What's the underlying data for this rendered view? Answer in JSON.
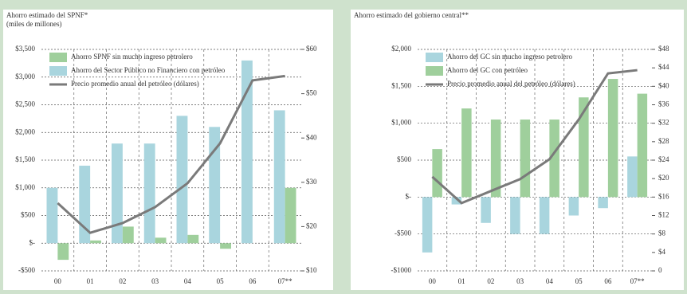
{
  "chart_data": [
    {
      "type": "bar",
      "title": "Ahorro estimado del SPNF*",
      "subtitle": "(miles de millones)",
      "categories": [
        "00",
        "01",
        "02",
        "03",
        "04",
        "05",
        "06",
        "07**"
      ],
      "series": [
        {
          "name": "Ahorro del Sector Público no Financiero con petróleo",
          "color": "#a9d5de",
          "values": [
            1000,
            1400,
            1800,
            1800,
            2300,
            2100,
            3300,
            2400
          ]
        },
        {
          "name": "Ahorro SPNF sin mucho ingreso petrolero",
          "color": "#9fcf9c",
          "values": [
            -300,
            50,
            300,
            100,
            150,
            -100,
            0,
            1000
          ]
        },
        {
          "name": "Precio promedio anual del petróleo (dólares)",
          "type": "line",
          "axis": "y2",
          "color": "#7a7a7a",
          "values": [
            25.3,
            18.6,
            20.8,
            24.4,
            29.8,
            38.8,
            53,
            54
          ]
        }
      ],
      "ylim": [
        -500,
        3500
      ],
      "yticks": [
        {
          "value": -500,
          "label": "-$500"
        },
        {
          "value": 0,
          "label": "$-"
        },
        {
          "value": 500,
          "label": "$500"
        },
        {
          "value": 1000,
          "label": "$1,000"
        },
        {
          "value": 1500,
          "label": "$1,500"
        },
        {
          "value": 2000,
          "label": "$2,000"
        },
        {
          "value": 2500,
          "label": "$2,500"
        },
        {
          "value": 3000,
          "label": "$3,000"
        },
        {
          "value": 3500,
          "label": "$3,500"
        }
      ],
      "y2lim": [
        10,
        60
      ],
      "y2ticks": [
        {
          "value": 10,
          "label": "$10"
        },
        {
          "value": 20,
          "label": "$20"
        },
        {
          "value": 30,
          "label": "$30"
        },
        {
          "value": 40,
          "label": "$40"
        },
        {
          "value": 50,
          "label": "$50"
        },
        {
          "value": 60,
          "label": "$60"
        }
      ],
      "legend": "upper left",
      "grid": true
    },
    {
      "type": "bar",
      "title": "Ahorro estimado del gobierno central**",
      "categories": [
        "00",
        "01",
        "02",
        "03",
        "04",
        "05",
        "06",
        "07**"
      ],
      "series": [
        {
          "name": "Ahorro del GC sin mucho ingreso petrolero",
          "color": "#a9d5de",
          "values": [
            -750,
            -100,
            -350,
            -500,
            -500,
            -250,
            -150,
            550
          ]
        },
        {
          "name": "Ahorro del GC con petróleo",
          "color": "#9fcf9c",
          "values": [
            650,
            1200,
            1050,
            1050,
            1050,
            1350,
            1600,
            1400
          ]
        },
        {
          "name": "Precio promedio anual del petróleo (dólares)",
          "type": "line",
          "axis": "y2",
          "color": "#7a7a7a",
          "values": [
            20.4,
            14.7,
            17.3,
            19.9,
            24.2,
            32.8,
            42.8,
            43.5
          ]
        }
      ],
      "ylim": [
        -1000,
        2000
      ],
      "yticks": [
        {
          "value": -1000,
          "label": "-$1000"
        },
        {
          "value": -500,
          "label": "-$500"
        },
        {
          "value": 0,
          "label": "$-"
        },
        {
          "value": 500,
          "label": "$500"
        },
        {
          "value": 1000,
          "label": "$1,000"
        },
        {
          "value": 1500,
          "label": "$1,500"
        },
        {
          "value": 2000,
          "label": "$2,000"
        }
      ],
      "y2lim": [
        0,
        48
      ],
      "y2ticks": [
        0,
        {
          "value": 4,
          "label": "$4"
        },
        {
          "value": 8,
          "label": "$8"
        },
        {
          "value": 12,
          "label": "$12"
        },
        {
          "value": 16,
          "label": "$16"
        },
        {
          "value": 20,
          "label": "$20"
        },
        {
          "value": 24,
          "label": "$24"
        },
        {
          "value": 28,
          "label": "$28"
        },
        {
          "value": 32,
          "label": "$32"
        },
        {
          "value": 36,
          "label": "$36"
        },
        {
          "value": 40,
          "label": "$40"
        },
        {
          "value": 44,
          "label": "$44"
        },
        {
          "value": 48,
          "label": "$48"
        }
      ],
      "legend": "upper left",
      "grid": true
    }
  ]
}
